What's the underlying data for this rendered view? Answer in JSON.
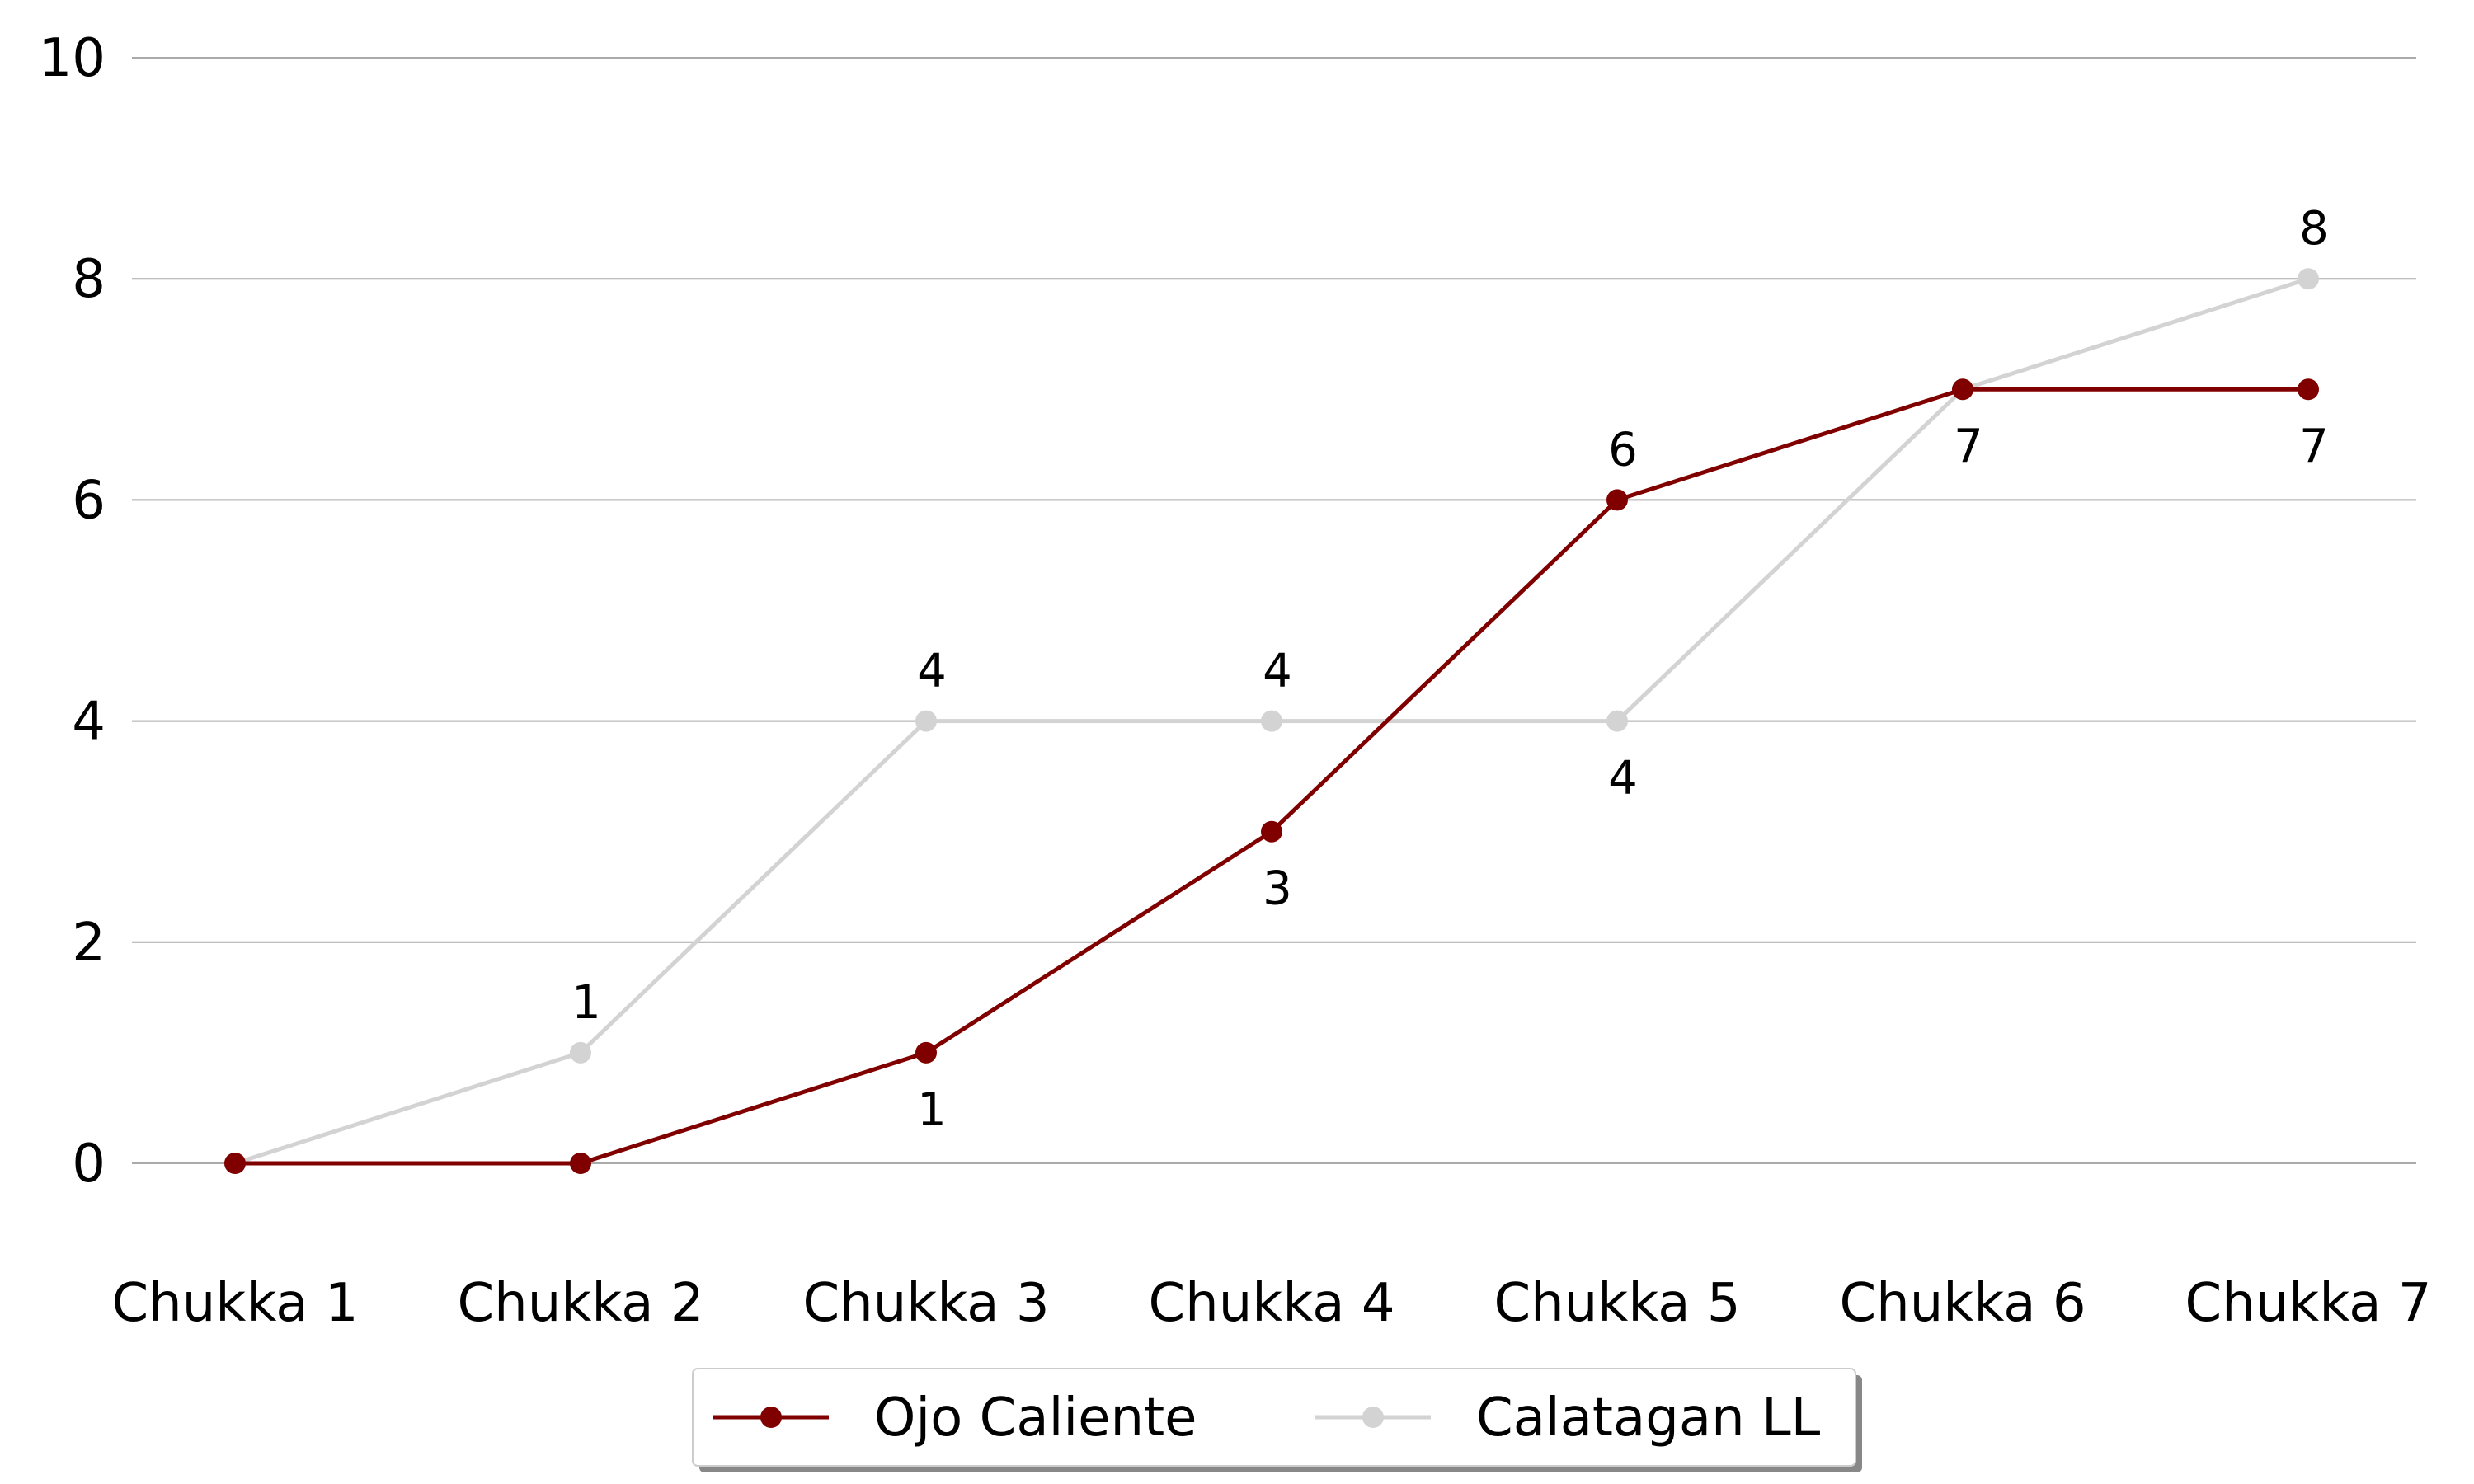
{
  "chart_data": {
    "type": "line",
    "categories": [
      "Chukka 1",
      "Chukka 2",
      "Chukka 3",
      "Chukka 4",
      "Chukka 5",
      "Chukka 6",
      "Chukka 7"
    ],
    "series": [
      {
        "name": "Ojo Caliente",
        "color": "#800000",
        "values": [
          0,
          0,
          1,
          3,
          6,
          7,
          7
        ],
        "labels": [
          null,
          null,
          "1",
          "3",
          "6",
          null,
          "7"
        ],
        "label_pos": [
          null,
          null,
          "below",
          "below",
          "above",
          null,
          "below"
        ]
      },
      {
        "name": "Calatagan LL",
        "color": "#d3d3d3",
        "values": [
          0,
          1,
          4,
          4,
          4,
          7,
          8
        ],
        "labels": [
          null,
          "1",
          "4",
          "4",
          "4",
          "7",
          "8"
        ],
        "label_pos": [
          null,
          "above",
          "above",
          "above",
          "below",
          "below",
          "above"
        ]
      }
    ],
    "y_ticks": [
      "0",
      "2",
      "4",
      "6",
      "8",
      "10"
    ],
    "ylim": [
      -0.9,
      10.6
    ],
    "grid": true,
    "legend_position": "bottom-center",
    "title": "",
    "xlabel": "",
    "ylabel": ""
  }
}
